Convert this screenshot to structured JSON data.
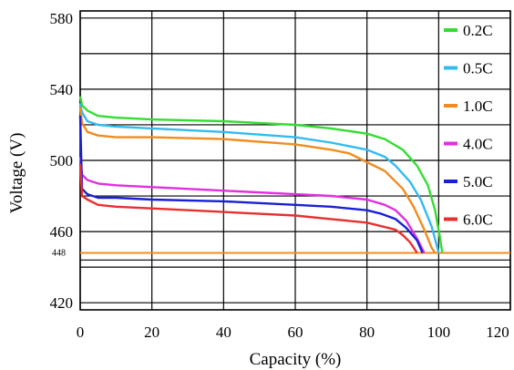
{
  "chart_data": {
    "type": "line",
    "title": "",
    "xlabel": "Capacity (%)",
    "ylabel": "Voltage (V)",
    "xlim": [
      0,
      120
    ],
    "ylim": [
      416,
      584
    ],
    "x_ticks": [
      "0",
      "20",
      "40",
      "60",
      "80",
      "100",
      "120"
    ],
    "y_ticks": [
      {
        "value": 580,
        "label": "580"
      },
      {
        "value": 540,
        "label": "540"
      },
      {
        "value": 500,
        "label": "500"
      },
      {
        "value": 460,
        "label": "460"
      },
      {
        "value": 448,
        "label": "448"
      },
      {
        "value": 420,
        "label": "420"
      }
    ],
    "grid": true,
    "legend_position": "right",
    "reference_line": {
      "y": 448,
      "color": "#f28c1e"
    },
    "series": [
      {
        "name": "0.2C",
        "color": "#33dd33",
        "points": [
          [
            0,
            536
          ],
          [
            0.5,
            531
          ],
          [
            2,
            528
          ],
          [
            5,
            525
          ],
          [
            10,
            524
          ],
          [
            20,
            523
          ],
          [
            40,
            522
          ],
          [
            60,
            520
          ],
          [
            70,
            518
          ],
          [
            80,
            515
          ],
          [
            85,
            512
          ],
          [
            90,
            506
          ],
          [
            94,
            497
          ],
          [
            97,
            486
          ],
          [
            99,
            472
          ],
          [
            100.5,
            455
          ],
          [
            101,
            448
          ]
        ]
      },
      {
        "name": "0.5C",
        "color": "#33bbee",
        "points": [
          [
            0,
            532
          ],
          [
            0.5,
            527
          ],
          [
            2,
            522
          ],
          [
            5,
            520
          ],
          [
            10,
            519
          ],
          [
            20,
            518
          ],
          [
            40,
            516
          ],
          [
            60,
            513
          ],
          [
            70,
            510
          ],
          [
            80,
            506
          ],
          [
            85,
            502
          ],
          [
            88,
            497
          ],
          [
            92,
            488
          ],
          [
            95,
            478
          ],
          [
            98,
            463
          ],
          [
            99.5,
            452
          ],
          [
            100,
            448
          ]
        ]
      },
      {
        "name": "1.0C",
        "color": "#f28c1e",
        "points": [
          [
            0,
            530
          ],
          [
            0.5,
            521
          ],
          [
            2,
            516
          ],
          [
            5,
            514
          ],
          [
            10,
            513
          ],
          [
            20,
            513
          ],
          [
            40,
            512
          ],
          [
            60,
            509
          ],
          [
            70,
            506
          ],
          [
            75,
            504
          ],
          [
            80,
            499
          ],
          [
            85,
            494
          ],
          [
            90,
            484
          ],
          [
            93,
            474
          ],
          [
            96,
            461
          ],
          [
            98,
            451
          ],
          [
            99,
            448
          ]
        ]
      },
      {
        "name": "4.0C",
        "color": "#e030e0",
        "points": [
          [
            0,
            502
          ],
          [
            0.5,
            492
          ],
          [
            2,
            489
          ],
          [
            5,
            487
          ],
          [
            10,
            486
          ],
          [
            20,
            485
          ],
          [
            40,
            483
          ],
          [
            60,
            481
          ],
          [
            70,
            480
          ],
          [
            80,
            478
          ],
          [
            85,
            475
          ],
          [
            88,
            472
          ],
          [
            91,
            466
          ],
          [
            94,
            456
          ],
          [
            96,
            448
          ]
        ]
      },
      {
        "name": "5.0C",
        "color": "#1a20d6",
        "points": [
          [
            0,
            525
          ],
          [
            0.5,
            484
          ],
          [
            2,
            481
          ],
          [
            5,
            479
          ],
          [
            10,
            479
          ],
          [
            20,
            478
          ],
          [
            40,
            477
          ],
          [
            60,
            475
          ],
          [
            70,
            474
          ],
          [
            80,
            472
          ],
          [
            84,
            470
          ],
          [
            88,
            467
          ],
          [
            91,
            462
          ],
          [
            94,
            455
          ],
          [
            95.5,
            448
          ]
        ]
      },
      {
        "name": "6.0C",
        "color": "#e83030",
        "points": [
          [
            0,
            498
          ],
          [
            0.5,
            480
          ],
          [
            2,
            478
          ],
          [
            5,
            475
          ],
          [
            10,
            474
          ],
          [
            20,
            473
          ],
          [
            40,
            471
          ],
          [
            60,
            469
          ],
          [
            70,
            467
          ],
          [
            80,
            465
          ],
          [
            84,
            463
          ],
          [
            88,
            461
          ],
          [
            90,
            458
          ],
          [
            92,
            454
          ],
          [
            94,
            448
          ]
        ]
      }
    ]
  }
}
